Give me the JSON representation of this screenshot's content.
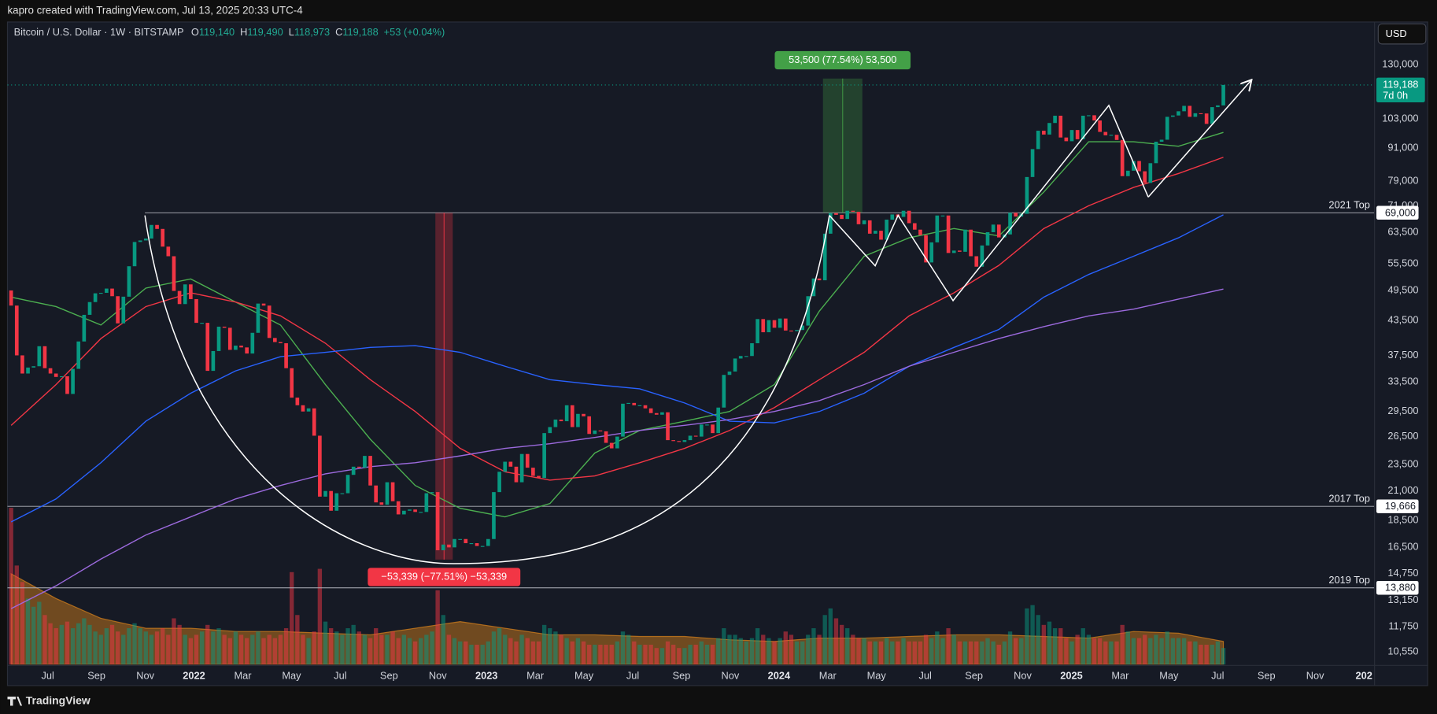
{
  "top_bar": "kapro created with TradingView.com, Jul 13, 2025 20:33 UTC-4",
  "footer": "TradingView",
  "currency_button": "USD",
  "chart_data": {
    "type": "candlestick",
    "title": "Bitcoin / U.S. Dollar · 1W · BITSTAMP",
    "ohlc": [
      {
        "key": "O",
        "value": "119,140"
      },
      {
        "key": "H",
        "value": "119,490"
      },
      {
        "key": "L",
        "value": "118,973"
      },
      {
        "key": "C",
        "value": "119,188"
      }
    ],
    "change": "+53 (+0.04%)",
    "log_scale": true,
    "grid": false,
    "ylim": [
      10000,
      156000
    ],
    "yticks": [
      {
        "value": 130000,
        "label": "130,000"
      },
      {
        "value": 103000,
        "label": "103,000"
      },
      {
        "value": 91000,
        "label": "91,000"
      },
      {
        "value": 79000,
        "label": "79,000"
      },
      {
        "value": 71000,
        "label": "71,000"
      },
      {
        "value": 63500,
        "label": "63,500"
      },
      {
        "value": 55500,
        "label": "55,500"
      },
      {
        "value": 49500,
        "label": "49,500"
      },
      {
        "value": 43500,
        "label": "43,500"
      },
      {
        "value": 37500,
        "label": "37,500"
      },
      {
        "value": 33500,
        "label": "33,500"
      },
      {
        "value": 29500,
        "label": "29,500"
      },
      {
        "value": 26500,
        "label": "26,500"
      },
      {
        "value": 23500,
        "label": "23,500"
      },
      {
        "value": 21000,
        "label": "21,000"
      },
      {
        "value": 18500,
        "label": "18,500"
      },
      {
        "value": 16500,
        "label": "16,500"
      },
      {
        "value": 14750,
        "label": "14,750"
      },
      {
        "value": 13150,
        "label": "13,150"
      },
      {
        "value": 11750,
        "label": "11,750"
      },
      {
        "value": 10550,
        "label": "10,550"
      }
    ],
    "x_labels": [
      "Jul",
      "Sep",
      "Nov",
      "2022",
      "Mar",
      "May",
      "Jul",
      "Sep",
      "Nov",
      "2023",
      "Mar",
      "May",
      "Jul",
      "Sep",
      "Nov",
      "2024",
      "Mar",
      "May",
      "Jul",
      "Sep",
      "Nov",
      "2025",
      "Mar",
      "May",
      "Jul",
      "Sep",
      "Nov",
      "202"
    ],
    "up_color": "#089981",
    "down_color": "#f23645",
    "open": 49500,
    "values": [
      46400,
      37500,
      34700,
      35600,
      35800,
      39000,
      35500,
      34700,
      34200,
      34300,
      31800,
      35400,
      39800,
      44600,
      47100,
      48900,
      49000,
      49900,
      48300,
      43000,
      48200,
      54900,
      60900,
      61300,
      61800,
      65500,
      64400,
      59700,
      57300,
      49400,
      46700,
      50800,
      47700,
      43100,
      43100,
      35100,
      38200,
      42400,
      42200,
      38400,
      39100,
      38800,
      37800,
      41300,
      46800,
      46400,
      40400,
      39700,
      39500,
      35500,
      31300,
      30300,
      29500,
      29900,
      26600,
      20500,
      21000,
      19300,
      20800,
      20800,
      22500,
      23300,
      23200,
      24400,
      21500,
      20000,
      19800,
      21800,
      20100,
      19000,
      19300,
      19400,
      19200,
      19200,
      20800,
      20900,
      16300,
      16700,
      16500,
      17100,
      17100,
      16800,
      16800,
      16600,
      16600,
      17100,
      20900,
      22800,
      23800,
      23300,
      21800,
      24600,
      23200,
      22400,
      22200,
      26900,
      27600,
      28500,
      28300,
      30300,
      27600,
      29200,
      28900,
      26800,
      27200,
      27100,
      25800,
      25200,
      26500,
      30500,
      30600,
      30300,
      30300,
      29900,
      29300,
      29100,
      29400,
      26100,
      26000,
      25900,
      26100,
      26600,
      26500,
      27900,
      27900,
      26900,
      30000,
      34500,
      35000,
      37000,
      37400,
      37400,
      39500,
      43800,
      41400,
      43600,
      42200,
      43900,
      41700,
      41600,
      41800,
      42600,
      48300,
      52100,
      51700,
      63100,
      68900,
      68400,
      67200,
      69600,
      69300,
      65700,
      66800,
      63100,
      63900,
      61500,
      67000,
      68500,
      67800,
      69600,
      66000,
      64200,
      62700,
      55800,
      60800,
      68200,
      68200,
      58100,
      58700,
      58400,
      64200,
      57300,
      54800,
      60000,
      63500,
      65600,
      62100,
      62900,
      69000,
      67900,
      68700,
      80400,
      90600,
      98000,
      96400,
      101300,
      104500,
      95200,
      93700,
      98300,
      94500,
      104500,
      104700,
      102400,
      97500,
      96100,
      96300,
      94200,
      80700,
      82600,
      86100,
      82400,
      78400,
      85300,
      93500,
      94300,
      104000,
      104600,
      106500,
      109000,
      104000,
      105600,
      105500,
      100900,
      108400,
      109200,
      119188
    ],
    "volume": [
      95,
      60,
      50,
      40,
      35,
      38,
      30,
      25,
      22,
      24,
      26,
      22,
      25,
      28,
      24,
      20,
      18,
      22,
      24,
      20,
      18,
      22,
      25,
      22,
      20,
      18,
      20,
      22,
      18,
      28,
      24,
      18,
      16,
      18,
      20,
      24,
      20,
      22,
      18,
      16,
      20,
      18,
      16,
      18,
      20,
      16,
      18,
      16,
      18,
      22,
      56,
      30,
      18,
      16,
      20,
      58,
      26,
      22,
      20,
      18,
      22,
      24,
      20,
      18,
      16,
      22,
      18,
      18,
      20,
      16,
      18,
      16,
      14,
      16,
      18,
      20,
      45,
      30,
      18,
      16,
      14,
      14,
      12,
      12,
      12,
      14,
      20,
      22,
      18,
      16,
      14,
      18,
      16,
      14,
      14,
      24,
      22,
      20,
      18,
      16,
      14,
      16,
      14,
      12,
      12,
      12,
      12,
      12,
      14,
      20,
      18,
      14,
      12,
      12,
      12,
      10,
      10,
      14,
      12,
      10,
      10,
      12,
      12,
      14,
      12,
      12,
      16,
      22,
      18,
      18,
      16,
      14,
      16,
      22,
      18,
      16,
      14,
      16,
      20,
      18,
      14,
      14,
      18,
      22,
      18,
      30,
      34,
      28,
      24,
      22,
      18,
      16,
      16,
      14,
      14,
      14,
      16,
      14,
      14,
      16,
      14,
      14,
      14,
      18,
      16,
      20,
      16,
      22,
      18,
      14,
      14,
      14,
      14,
      14,
      16,
      14,
      12,
      14,
      20,
      16,
      16,
      34,
      36,
      30,
      24,
      26,
      22,
      22,
      16,
      14,
      18,
      22,
      18,
      16,
      16,
      14,
      14,
      14,
      24,
      20,
      16,
      16,
      18,
      16,
      18,
      16,
      20,
      16,
      16,
      16,
      14,
      14,
      12,
      12,
      12,
      14,
      10
    ],
    "volume_ma": [
      55,
      40,
      28,
      22,
      22,
      20,
      20,
      19,
      18,
      22,
      26,
      22,
      18,
      18,
      17,
      17,
      15,
      14,
      16,
      16,
      17,
      18,
      18,
      17,
      16,
      20,
      19,
      14
    ],
    "volume_ma_color": "#f7931a",
    "moving_averages": [
      {
        "color": "#4caf50",
        "values": [
          48100,
          46200,
          42700,
          50000,
          52000,
          47100,
          42700,
          33100,
          26200,
          21500,
          19500,
          18800,
          19900,
          24700,
          27200,
          28300,
          29500,
          33100,
          45300,
          57300,
          62000,
          64500,
          62500,
          75400,
          93500,
          93500,
          91700,
          97300
        ]
      },
      {
        "color": "#f23645",
        "values": [
          27800,
          33100,
          40300,
          46200,
          49000,
          47100,
          44400,
          39500,
          33800,
          29500,
          25200,
          22800,
          22000,
          22400,
          23700,
          25200,
          27200,
          30000,
          33800,
          38000,
          44400,
          49000,
          55100,
          64500,
          71100,
          76900,
          81600,
          87500
        ]
      },
      {
        "color": "#2962ff",
        "values": [
          18400,
          20300,
          23700,
          28300,
          31900,
          35100,
          37300,
          38000,
          38800,
          39100,
          38000,
          35800,
          33800,
          33100,
          32500,
          30600,
          28300,
          28100,
          29500,
          31900,
          35800,
          38800,
          41900,
          48100,
          53000,
          57300,
          62000,
          68400
        ]
      },
      {
        "color": "#9c6ade",
        "values": [
          12700,
          14000,
          15700,
          17400,
          18800,
          20300,
          21500,
          22600,
          23300,
          23700,
          24400,
          25200,
          25700,
          26400,
          27200,
          27800,
          28500,
          29500,
          30900,
          33100,
          35800,
          38000,
          40300,
          42400,
          44400,
          45700,
          47700,
          49800
        ]
      }
    ],
    "levels": [
      {
        "value": 69000,
        "label": "69,000",
        "name": "2021 Top"
      },
      {
        "value": 19666,
        "label": "19,666",
        "name": "2017 Top"
      },
      {
        "value": 13880,
        "label": "13,880",
        "name": "2019 Top"
      }
    ],
    "last_price": {
      "value": 119188,
      "label": "119,188",
      "countdown": "7d 0h"
    },
    "measures": [
      {
        "text": "53,500 (77.54%) 53,500",
        "range": [
          69000,
          122500
        ],
        "color": "#43a047"
      },
      {
        "text": "−53,339 (−77.51%) −53,339",
        "range": [
          69000,
          15661
        ],
        "color": "#f23645"
      }
    ]
  }
}
